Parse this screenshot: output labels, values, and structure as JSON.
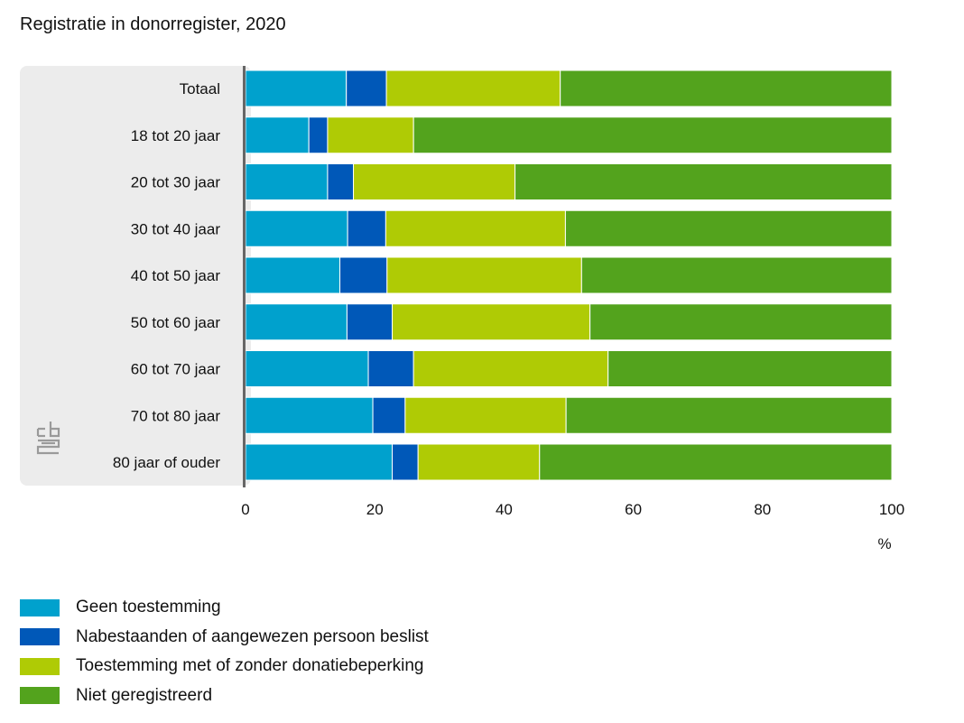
{
  "chart_data": {
    "type": "bar",
    "orientation": "horizontal",
    "stacked": true,
    "title": "Registratie in donorregister, 2020",
    "xlabel": "%",
    "xlim": [
      0,
      100
    ],
    "xticks": [
      "0",
      "20",
      "40",
      "60",
      "80",
      "100"
    ],
    "categories": [
      "Totaal",
      "18 tot 20 jaar",
      "20 tot 30 jaar",
      "30 tot 40 jaar",
      "40 tot 50 jaar",
      "50 tot 60 jaar",
      "60 tot 70 jaar",
      "70 tot 80 jaar",
      "80 jaar of ouder"
    ],
    "series": [
      {
        "name": "Geen toestemming",
        "color": "#00a1cd",
        "values": [
          15.6,
          9.8,
          12.7,
          15.8,
          14.6,
          15.7,
          19.0,
          19.7,
          22.7
        ]
      },
      {
        "name": "Nabestaanden of aangewezen persoon beslist",
        "color": "#0058b8",
        "values": [
          6.2,
          2.9,
          4.0,
          5.9,
          7.3,
          7.0,
          7.0,
          5.0,
          4.0
        ]
      },
      {
        "name": "Toestemming met of zonder donatiebeperking",
        "color": "#afcb05",
        "values": [
          26.9,
          13.3,
          25.0,
          27.8,
          30.1,
          30.6,
          30.1,
          24.9,
          18.8
        ]
      },
      {
        "name": "Niet geregistreerd",
        "color": "#53a31d",
        "values": [
          51.3,
          74.0,
          58.3,
          50.5,
          48.0,
          46.7,
          43.9,
          50.4,
          54.5
        ]
      }
    ],
    "legend_position": "bottom-left",
    "grid": false
  },
  "icons": {
    "logo": "cbs-logo"
  }
}
